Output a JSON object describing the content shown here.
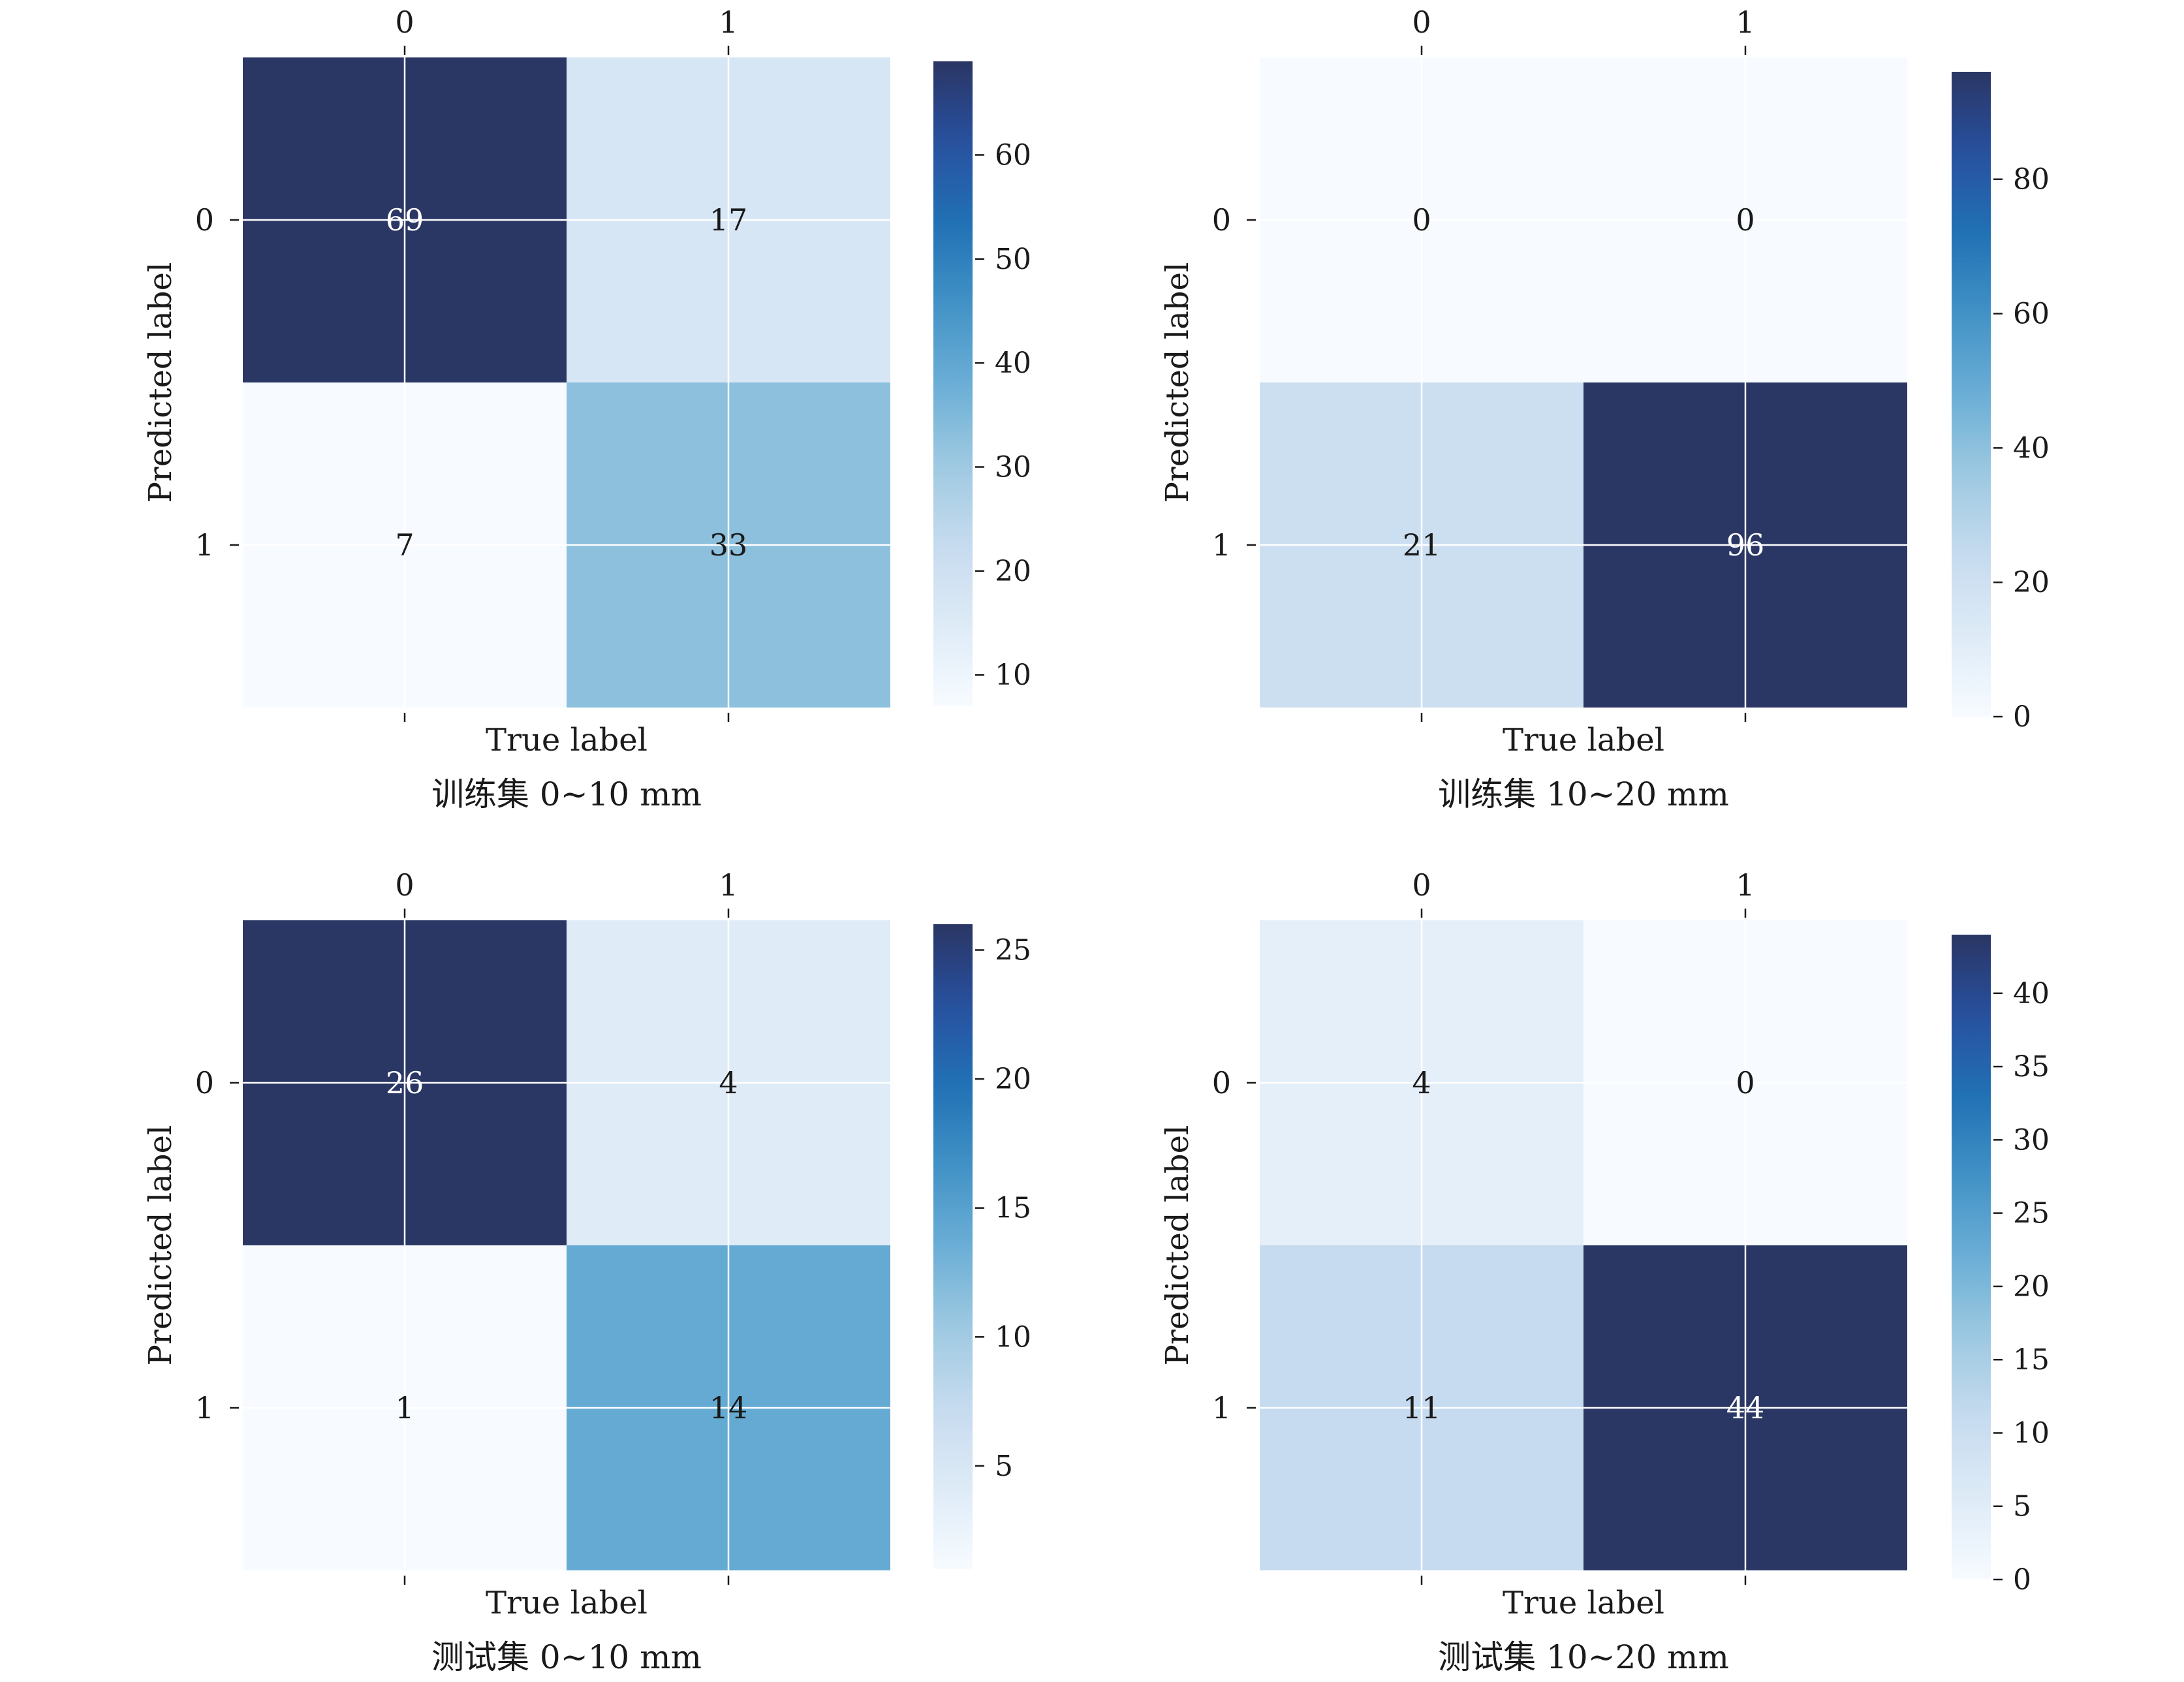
{
  "chart_data": [
    {
      "type": "heatmap",
      "caption": "训练集 0~10 mm",
      "xlabel": "True label",
      "ylabel": "Predicted label",
      "x_tick_labels": [
        "0",
        "1"
      ],
      "y_tick_labels": [
        "0",
        "1"
      ],
      "matrix": [
        [
          69,
          17
        ],
        [
          7,
          33
        ]
      ],
      "colorbar": {
        "range": [
          7,
          69
        ],
        "ticks": [
          10,
          20,
          30,
          40,
          50,
          60
        ]
      },
      "colormap": "Blues"
    },
    {
      "type": "heatmap",
      "caption": "训练集 10~20 mm",
      "xlabel": "True label",
      "ylabel": "Predicted label",
      "x_tick_labels": [
        "0",
        "1"
      ],
      "y_tick_labels": [
        "0",
        "1"
      ],
      "matrix": [
        [
          0,
          0
        ],
        [
          21,
          96
        ]
      ],
      "colorbar": {
        "range": [
          0,
          96
        ],
        "ticks": [
          0,
          20,
          40,
          60,
          80
        ]
      },
      "colormap": "Blues"
    },
    {
      "type": "heatmap",
      "caption": "测试集 0~10 mm",
      "xlabel": "True label",
      "ylabel": "Predicted label",
      "x_tick_labels": [
        "0",
        "1"
      ],
      "y_tick_labels": [
        "0",
        "1"
      ],
      "matrix": [
        [
          26,
          4
        ],
        [
          1,
          14
        ]
      ],
      "colorbar": {
        "range": [
          1,
          26
        ],
        "ticks": [
          5,
          10,
          15,
          20,
          25
        ]
      },
      "colormap": "Blues"
    },
    {
      "type": "heatmap",
      "caption": "测试集 10~20 mm",
      "xlabel": "True label",
      "ylabel": "Predicted label",
      "x_tick_labels": [
        "0",
        "1"
      ],
      "y_tick_labels": [
        "0",
        "1"
      ],
      "matrix": [
        [
          4,
          0
        ],
        [
          11,
          44
        ]
      ],
      "colorbar": {
        "range": [
          0,
          44
        ],
        "ticks": [
          0,
          5,
          10,
          15,
          20,
          25,
          30,
          35,
          40
        ]
      },
      "colormap": "Blues"
    }
  ]
}
